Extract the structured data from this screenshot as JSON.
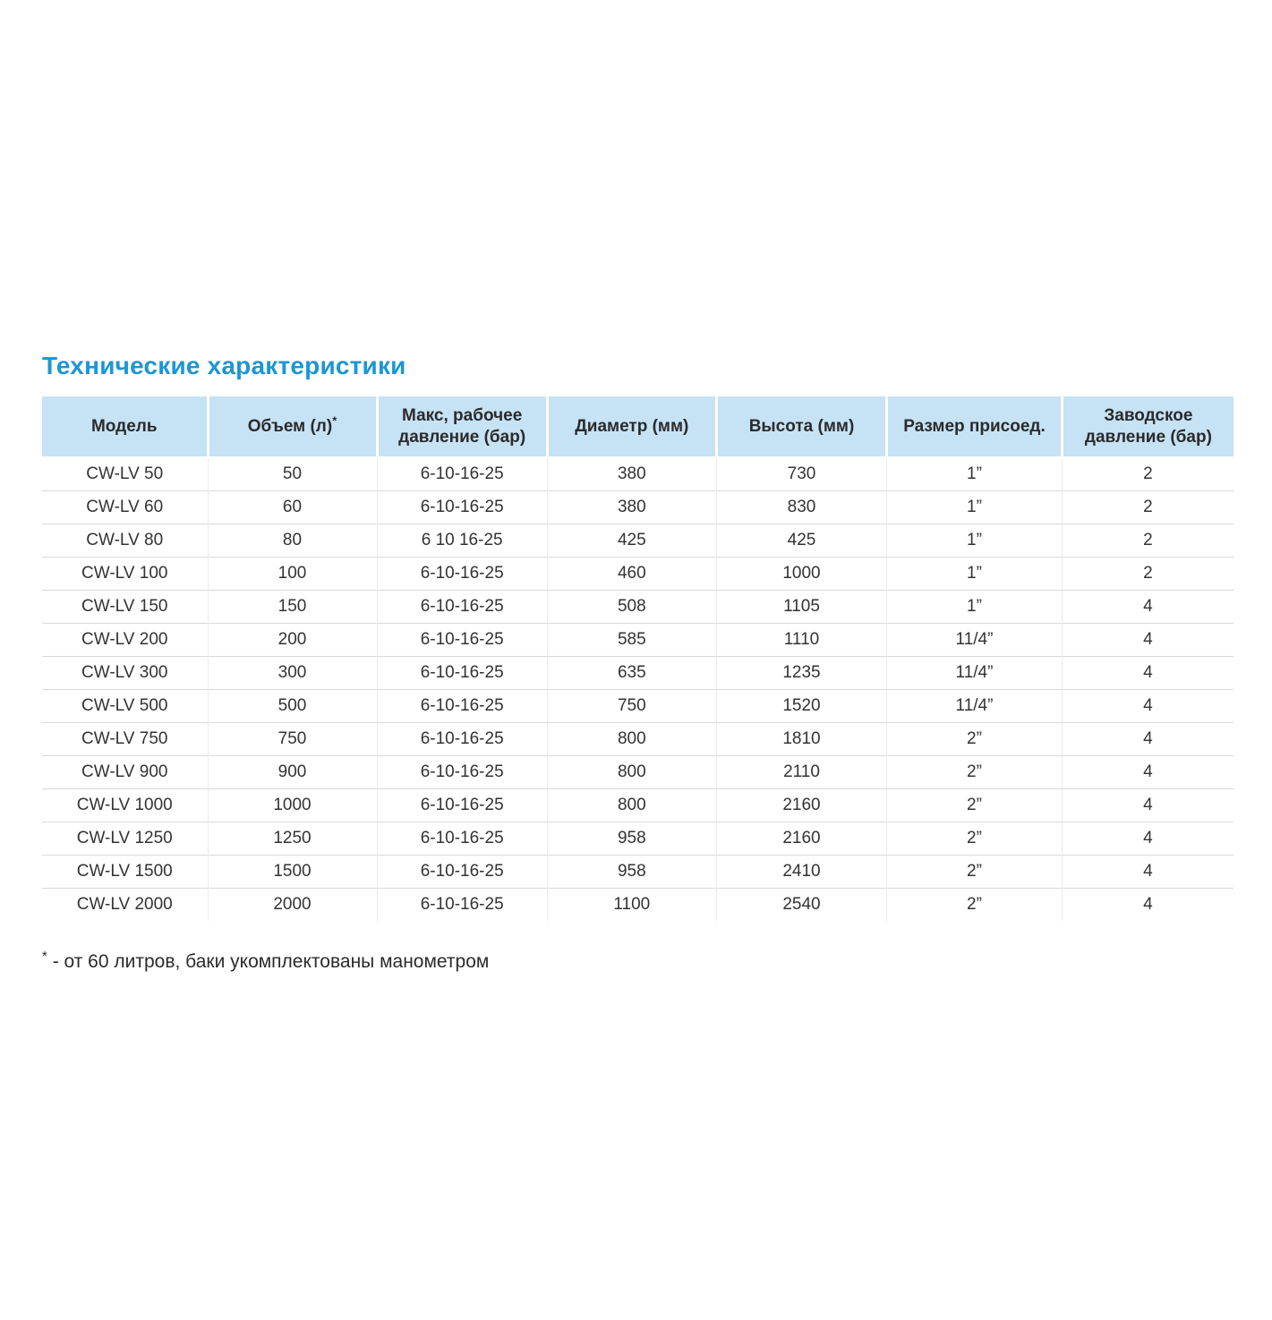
{
  "page": {
    "title": "Технические характеристики",
    "footnote": {
      "marker": "*",
      "text": "- от 60 литров, баки укомплектованы манометром"
    }
  },
  "colors": {
    "title_accent": "#1E96D3",
    "header_background": "#C6E2F5",
    "body_text": "#333333",
    "row_divider": "#D9D9D9"
  },
  "table": {
    "columns": [
      {
        "label": "Модель",
        "superscript": ""
      },
      {
        "label": "Объем (л)",
        "superscript": "*"
      },
      {
        "label": "Макс, рабочее давление (бар)",
        "superscript": ""
      },
      {
        "label": "Диаметр (мм)",
        "superscript": ""
      },
      {
        "label": "Высота (мм)",
        "superscript": ""
      },
      {
        "label": "Размер присоед.",
        "superscript": ""
      },
      {
        "label": "Заводское давление (бар)",
        "superscript": ""
      }
    ],
    "rows": [
      [
        "CW-LV 50",
        "50",
        "6-10-16-25",
        "380",
        "730",
        "1”",
        "2"
      ],
      [
        "CW-LV 60",
        "60",
        "6-10-16-25",
        "380",
        "830",
        "1”",
        "2"
      ],
      [
        "CW-LV 80",
        "80",
        "6 10 16-25",
        "425",
        "425",
        "1”",
        "2"
      ],
      [
        "CW-LV 100",
        "100",
        "6-10-16-25",
        "460",
        "1000",
        "1”",
        "2"
      ],
      [
        "CW-LV 150",
        "150",
        "6-10-16-25",
        "508",
        "1105",
        "1”",
        "4"
      ],
      [
        "CW-LV 200",
        "200",
        "6-10-16-25",
        "585",
        "1110",
        "11/4”",
        "4"
      ],
      [
        "CW-LV 300",
        "300",
        "6-10-16-25",
        "635",
        "1235",
        "11/4”",
        "4"
      ],
      [
        "CW-LV 500",
        "500",
        "6-10-16-25",
        "750",
        "1520",
        "11/4”",
        "4"
      ],
      [
        "CW-LV 750",
        "750",
        "6-10-16-25",
        "800",
        "1810",
        "2”",
        "4"
      ],
      [
        "CW-LV 900",
        "900",
        "6-10-16-25",
        "800",
        "2110",
        "2”",
        "4"
      ],
      [
        "CW-LV 1000",
        "1000",
        "6-10-16-25",
        "800",
        "2160",
        "2”",
        "4"
      ],
      [
        "CW-LV 1250",
        "1250",
        "6-10-16-25",
        "958",
        "2160",
        "2”",
        "4"
      ],
      [
        "CW-LV 1500",
        "1500",
        "6-10-16-25",
        "958",
        "2410",
        "2”",
        "4"
      ],
      [
        "CW-LV 2000",
        "2000",
        "6-10-16-25",
        "1100",
        "2540",
        "2”",
        "4"
      ]
    ]
  }
}
